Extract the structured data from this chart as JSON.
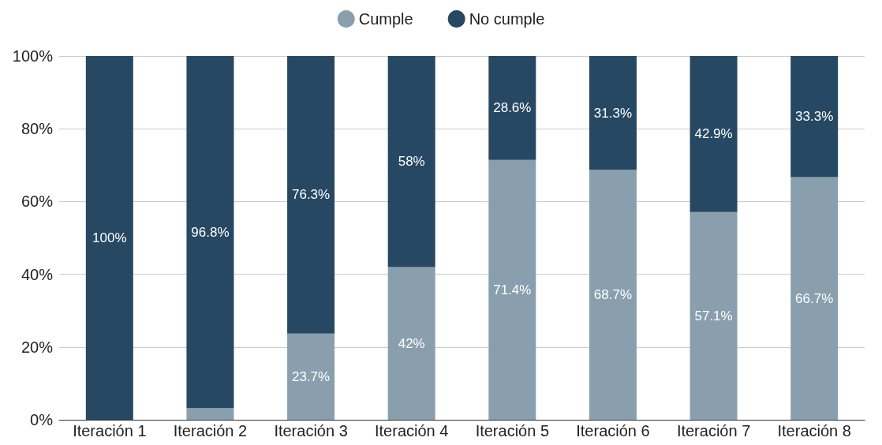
{
  "chart_data": {
    "type": "bar",
    "stacked": true,
    "categories": [
      "Iteración 1",
      "Iteración 2",
      "Iteración 3",
      "Iteración 4",
      "Iteración 5",
      "Iteración 6",
      "Iteración 7",
      "Iteración 8"
    ],
    "series": [
      {
        "name": "Cumple",
        "color": "#8a9fae",
        "values": [
          0,
          3.2,
          23.7,
          42,
          71.4,
          68.7,
          57.1,
          66.7
        ],
        "value_labels": [
          null,
          null,
          "23.7%",
          "42%",
          "71.4%",
          "68.7%",
          "57.1%",
          "66.7%"
        ]
      },
      {
        "name": "No cumple",
        "color": "#264862",
        "values": [
          100,
          96.8,
          76.3,
          58,
          28.6,
          31.3,
          42.9,
          33.3
        ],
        "value_labels": [
          "100%",
          "96.8%",
          "76.3%",
          "58%",
          "28.6%",
          "31.3%",
          "42.9%",
          "33.3%"
        ]
      }
    ],
    "ylim": [
      0,
      100
    ],
    "yticks": [
      {
        "value": 0,
        "label": "0%"
      },
      {
        "value": 20,
        "label": "20%"
      },
      {
        "value": 40,
        "label": "40%"
      },
      {
        "value": 60,
        "label": "60%"
      },
      {
        "value": 80,
        "label": "80%"
      },
      {
        "value": 100,
        "label": "100%"
      }
    ],
    "grid": "y",
    "legend": "top"
  }
}
